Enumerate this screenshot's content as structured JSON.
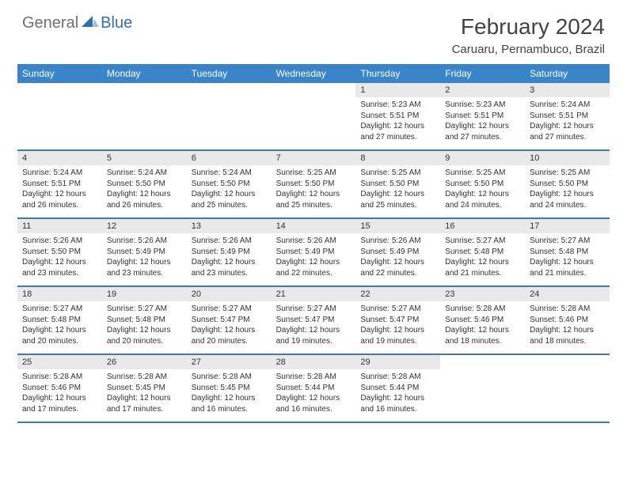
{
  "brand": {
    "part1": "General",
    "part2": "Blue"
  },
  "title": "February 2024",
  "location": "Caruaru, Pernambuco, Brazil",
  "colors": {
    "header_bg": "#3a85c9",
    "week_border": "#3a7bb5",
    "daynum_bg": "#e9e9e9",
    "text": "#333333",
    "brand_gray": "#707070",
    "brand_blue": "#2f6fb3"
  },
  "weekdays": [
    "Sunday",
    "Monday",
    "Tuesday",
    "Wednesday",
    "Thursday",
    "Friday",
    "Saturday"
  ],
  "weeks": [
    [
      {
        "empty": true
      },
      {
        "empty": true
      },
      {
        "empty": true
      },
      {
        "empty": true
      },
      {
        "n": "1",
        "sunrise": "5:23 AM",
        "sunset": "5:51 PM",
        "daylight": "12 hours and 27 minutes."
      },
      {
        "n": "2",
        "sunrise": "5:23 AM",
        "sunset": "5:51 PM",
        "daylight": "12 hours and 27 minutes."
      },
      {
        "n": "3",
        "sunrise": "5:24 AM",
        "sunset": "5:51 PM",
        "daylight": "12 hours and 27 minutes."
      }
    ],
    [
      {
        "n": "4",
        "sunrise": "5:24 AM",
        "sunset": "5:51 PM",
        "daylight": "12 hours and 26 minutes."
      },
      {
        "n": "5",
        "sunrise": "5:24 AM",
        "sunset": "5:50 PM",
        "daylight": "12 hours and 26 minutes."
      },
      {
        "n": "6",
        "sunrise": "5:24 AM",
        "sunset": "5:50 PM",
        "daylight": "12 hours and 25 minutes."
      },
      {
        "n": "7",
        "sunrise": "5:25 AM",
        "sunset": "5:50 PM",
        "daylight": "12 hours and 25 minutes."
      },
      {
        "n": "8",
        "sunrise": "5:25 AM",
        "sunset": "5:50 PM",
        "daylight": "12 hours and 25 minutes."
      },
      {
        "n": "9",
        "sunrise": "5:25 AM",
        "sunset": "5:50 PM",
        "daylight": "12 hours and 24 minutes."
      },
      {
        "n": "10",
        "sunrise": "5:25 AM",
        "sunset": "5:50 PM",
        "daylight": "12 hours and 24 minutes."
      }
    ],
    [
      {
        "n": "11",
        "sunrise": "5:26 AM",
        "sunset": "5:50 PM",
        "daylight": "12 hours and 23 minutes."
      },
      {
        "n": "12",
        "sunrise": "5:26 AM",
        "sunset": "5:49 PM",
        "daylight": "12 hours and 23 minutes."
      },
      {
        "n": "13",
        "sunrise": "5:26 AM",
        "sunset": "5:49 PM",
        "daylight": "12 hours and 23 minutes."
      },
      {
        "n": "14",
        "sunrise": "5:26 AM",
        "sunset": "5:49 PM",
        "daylight": "12 hours and 22 minutes."
      },
      {
        "n": "15",
        "sunrise": "5:26 AM",
        "sunset": "5:49 PM",
        "daylight": "12 hours and 22 minutes."
      },
      {
        "n": "16",
        "sunrise": "5:27 AM",
        "sunset": "5:48 PM",
        "daylight": "12 hours and 21 minutes."
      },
      {
        "n": "17",
        "sunrise": "5:27 AM",
        "sunset": "5:48 PM",
        "daylight": "12 hours and 21 minutes."
      }
    ],
    [
      {
        "n": "18",
        "sunrise": "5:27 AM",
        "sunset": "5:48 PM",
        "daylight": "12 hours and 20 minutes."
      },
      {
        "n": "19",
        "sunrise": "5:27 AM",
        "sunset": "5:48 PM",
        "daylight": "12 hours and 20 minutes."
      },
      {
        "n": "20",
        "sunrise": "5:27 AM",
        "sunset": "5:47 PM",
        "daylight": "12 hours and 20 minutes."
      },
      {
        "n": "21",
        "sunrise": "5:27 AM",
        "sunset": "5:47 PM",
        "daylight": "12 hours and 19 minutes."
      },
      {
        "n": "22",
        "sunrise": "5:27 AM",
        "sunset": "5:47 PM",
        "daylight": "12 hours and 19 minutes."
      },
      {
        "n": "23",
        "sunrise": "5:28 AM",
        "sunset": "5:46 PM",
        "daylight": "12 hours and 18 minutes."
      },
      {
        "n": "24",
        "sunrise": "5:28 AM",
        "sunset": "5:46 PM",
        "daylight": "12 hours and 18 minutes."
      }
    ],
    [
      {
        "n": "25",
        "sunrise": "5:28 AM",
        "sunset": "5:46 PM",
        "daylight": "12 hours and 17 minutes."
      },
      {
        "n": "26",
        "sunrise": "5:28 AM",
        "sunset": "5:45 PM",
        "daylight": "12 hours and 17 minutes."
      },
      {
        "n": "27",
        "sunrise": "5:28 AM",
        "sunset": "5:45 PM",
        "daylight": "12 hours and 16 minutes."
      },
      {
        "n": "28",
        "sunrise": "5:28 AM",
        "sunset": "5:44 PM",
        "daylight": "12 hours and 16 minutes."
      },
      {
        "n": "29",
        "sunrise": "5:28 AM",
        "sunset": "5:44 PM",
        "daylight": "12 hours and 16 minutes."
      },
      {
        "empty": true
      },
      {
        "empty": true
      }
    ]
  ],
  "labels": {
    "sunrise": "Sunrise:",
    "sunset": "Sunset:",
    "daylight": "Daylight:"
  }
}
